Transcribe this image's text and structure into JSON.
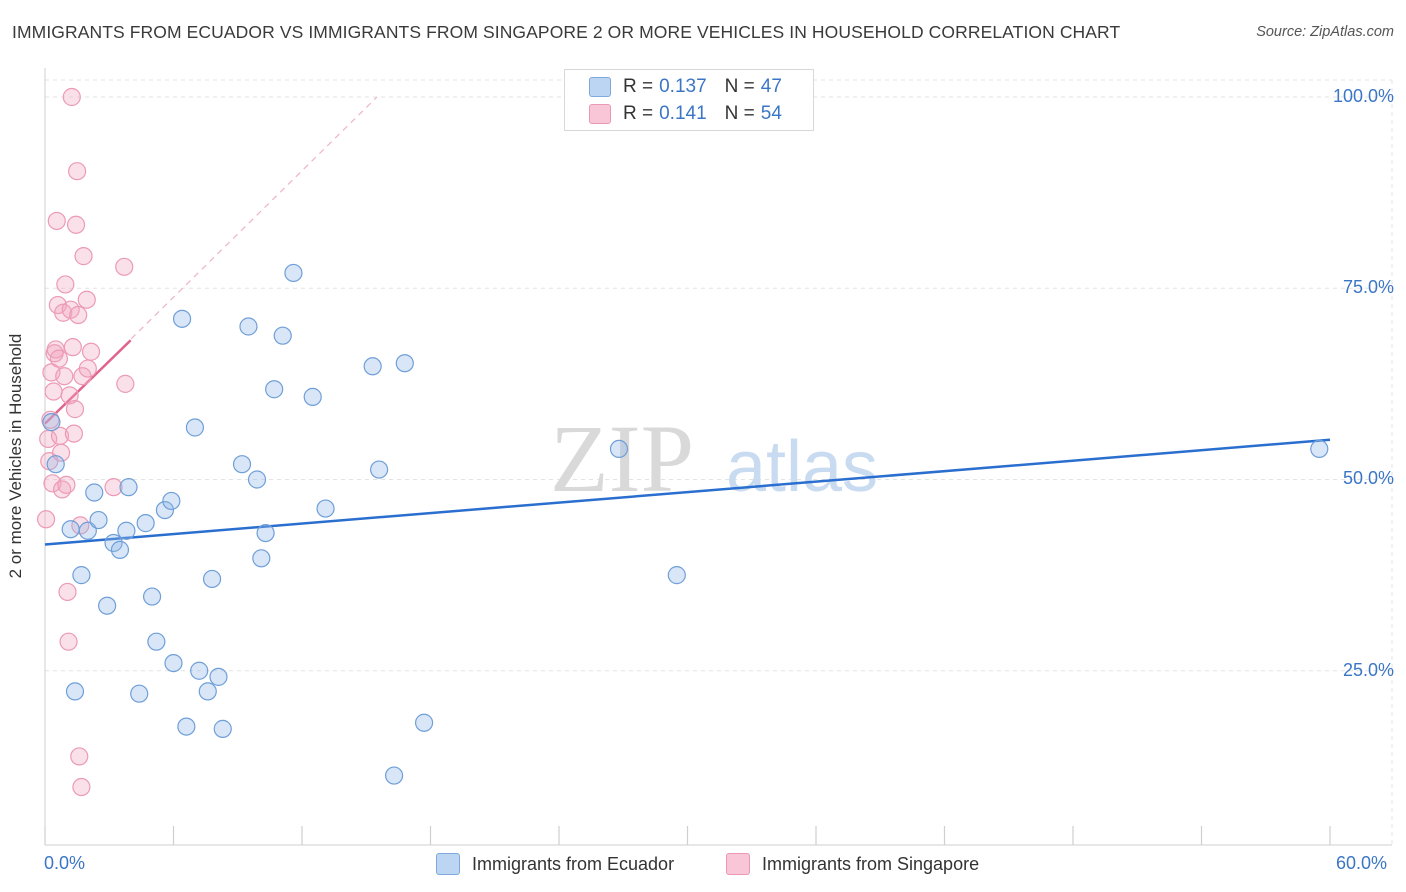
{
  "title": "IMMIGRANTS FROM ECUADOR VS IMMIGRANTS FROM SINGAPORE 2 OR MORE VEHICLES IN HOUSEHOLD CORRELATION CHART",
  "source": "Source: ZipAtlas.com",
  "watermark": {
    "zip": "ZIP",
    "atlas": "atlas"
  },
  "legend": {
    "ecuador": {
      "r_label": "R = ",
      "r_value": "0.137",
      "n_label": "N = ",
      "n_value": "47"
    },
    "singapore": {
      "r_label": "R = ",
      "r_value": "0.141",
      "n_label": "N = ",
      "n_value": "54"
    }
  },
  "chart_data": {
    "type": "scatter",
    "title": "IMMIGRANTS FROM ECUADOR VS IMMIGRANTS FROM SINGAPORE 2 OR MORE VEHICLES IN HOUSEHOLD CORRELATION CHART",
    "xlabel": "",
    "ylabel": "2 or more Vehicles in Household",
    "xlim": [
      0,
      60
    ],
    "ylim": [
      0,
      100
    ],
    "x_tick_labels": [
      "0.0%",
      "60.0%"
    ],
    "y_tick_labels": [
      "100.0%",
      "75.0%",
      "50.0%",
      "25.0%"
    ],
    "y_ticks": [
      100,
      75,
      50,
      25
    ],
    "x_ticks": [
      0,
      6,
      12,
      18,
      24,
      30,
      36,
      42,
      48,
      54,
      60
    ],
    "grid": true,
    "colors": {
      "ecuador": "#8fb8e8",
      "ecuador_line": "#2a6fcf",
      "singapore": "#f2a7bf",
      "singapore_line": "#e0648f",
      "axis_text": "#3b76c6"
    },
    "series": [
      {
        "name": "Immigrants from Ecuador",
        "trend": {
          "x": [
            0,
            60
          ],
          "y": [
            41.5,
            55.2
          ]
        },
        "points": [
          [
            0.3,
            57.5
          ],
          [
            0.5,
            52
          ],
          [
            1.2,
            43.5
          ],
          [
            1.4,
            22.3
          ],
          [
            1.7,
            37.5
          ],
          [
            2.0,
            43.3
          ],
          [
            2.3,
            48.3
          ],
          [
            2.5,
            44.7
          ],
          [
            2.9,
            33.5
          ],
          [
            3.2,
            41.7
          ],
          [
            3.5,
            40.8
          ],
          [
            3.8,
            43.3
          ],
          [
            3.9,
            49
          ],
          [
            4.4,
            22
          ],
          [
            4.7,
            44.3
          ],
          [
            5.0,
            34.7
          ],
          [
            5.2,
            28.8
          ],
          [
            5.6,
            46
          ],
          [
            5.9,
            47.2
          ],
          [
            6.0,
            26
          ],
          [
            6.4,
            71
          ],
          [
            6.6,
            17.7
          ],
          [
            7.0,
            56.8
          ],
          [
            7.2,
            25
          ],
          [
            7.6,
            22.3
          ],
          [
            7.8,
            37
          ],
          [
            8.1,
            24.2
          ],
          [
            8.3,
            17.4
          ],
          [
            9.2,
            52
          ],
          [
            9.5,
            70
          ],
          [
            9.9,
            50
          ],
          [
            10.1,
            39.7
          ],
          [
            10.3,
            43
          ],
          [
            10.7,
            61.8
          ],
          [
            11.1,
            68.8
          ],
          [
            11.6,
            77
          ],
          [
            12.5,
            60.8
          ],
          [
            13.1,
            46.2
          ],
          [
            15.3,
            64.8
          ],
          [
            15.6,
            51.3
          ],
          [
            16.3,
            11.3
          ],
          [
            16.8,
            65.2
          ],
          [
            17.7,
            18.2
          ],
          [
            26.8,
            54
          ],
          [
            29.5,
            37.5
          ],
          [
            59.5,
            54
          ]
        ]
      },
      {
        "name": "Immigrants from Singapore",
        "trend": {
          "x": [
            0,
            4.0
          ],
          "y": [
            57.3,
            68.2
          ]
        },
        "trend_extended": {
          "x": [
            0,
            15.5
          ],
          "y": [
            57.3,
            100
          ]
        },
        "points": [
          [
            0.05,
            44.8
          ],
          [
            0.15,
            55.3
          ],
          [
            0.2,
            52.4
          ],
          [
            0.25,
            57.8
          ],
          [
            0.3,
            64
          ],
          [
            0.35,
            49.5
          ],
          [
            0.4,
            61.5
          ],
          [
            0.45,
            66.5
          ],
          [
            0.5,
            67
          ],
          [
            0.55,
            83.8
          ],
          [
            0.6,
            72.8
          ],
          [
            0.65,
            65.8
          ],
          [
            0.7,
            55.7
          ],
          [
            0.75,
            53.5
          ],
          [
            0.8,
            48.7
          ],
          [
            0.85,
            71.8
          ],
          [
            0.9,
            63.5
          ],
          [
            0.95,
            75.5
          ],
          [
            1.0,
            49.3
          ],
          [
            1.05,
            35.3
          ],
          [
            1.1,
            28.8
          ],
          [
            1.15,
            61
          ],
          [
            1.2,
            72.2
          ],
          [
            1.25,
            100
          ],
          [
            1.3,
            67.3
          ],
          [
            1.35,
            56
          ],
          [
            1.4,
            59.2
          ],
          [
            1.45,
            83.3
          ],
          [
            1.5,
            90.3
          ],
          [
            1.55,
            71.5
          ],
          [
            1.6,
            13.8
          ],
          [
            1.65,
            44
          ],
          [
            1.7,
            9.8
          ],
          [
            1.75,
            63.5
          ],
          [
            1.8,
            79.2
          ],
          [
            1.95,
            73.5
          ],
          [
            2.0,
            64.5
          ],
          [
            2.15,
            66.7
          ],
          [
            3.2,
            49
          ],
          [
            3.7,
            77.8
          ],
          [
            3.75,
            62.5
          ]
        ]
      }
    ]
  },
  "bottom_legend": {
    "ecuador_label": "Immigrants from Ecuador",
    "singapore_label": "Immigrants from Singapore"
  }
}
